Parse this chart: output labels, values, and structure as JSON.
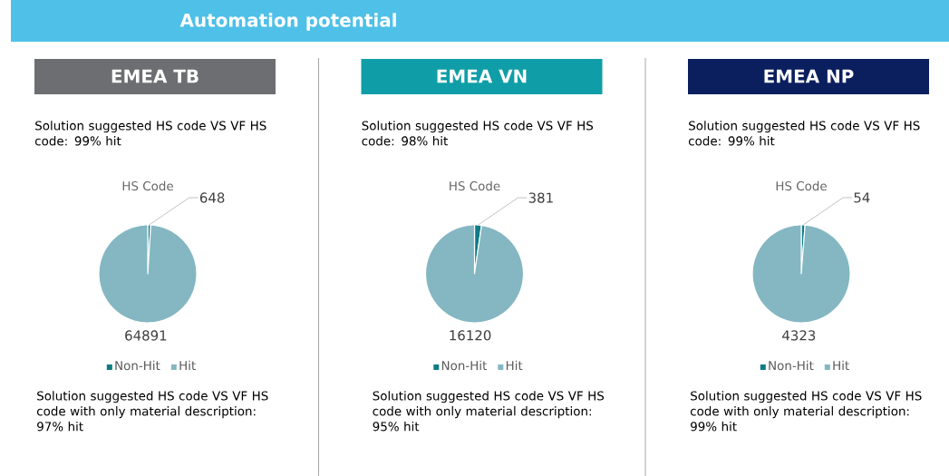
{
  "chart_data": [
    {
      "type": "other",
      "title": "Automation potential"
    },
    {
      "type": "pie",
      "title": "EMEA TB",
      "subtitle": "Solution suggested HS code VS VF HS code: 99% hit",
      "categories": [
        "Non-Hit",
        "Hit"
      ],
      "values": [
        648,
        64891
      ],
      "colors": [
        "#0e7c86",
        "#84b7c2"
      ],
      "data_labels": true,
      "legend": "bottom",
      "annotations": [
        "HS Code",
        "Solution suggested HS code VS VF HS code with only material description: 97% hit"
      ]
    },
    {
      "type": "pie",
      "title": "EMEA VN",
      "subtitle": "Solution suggested HS code VS VF HS code: 98% hit",
      "categories": [
        "Non-Hit",
        "Hit"
      ],
      "values": [
        381,
        16120
      ],
      "colors": [
        "#0e7c86",
        "#84b7c2"
      ],
      "data_labels": true,
      "legend": "bottom",
      "annotations": [
        "HS Code",
        "Solution suggested HS code VS VF HS code with only material description: 95% hit"
      ]
    },
    {
      "type": "pie",
      "title": "EMEA NP",
      "subtitle": "Solution suggested HS code VS VF HS code: 99% hit",
      "categories": [
        "Non-Hit",
        "Hit"
      ],
      "values": [
        54,
        4323
      ],
      "colors": [
        "#0e7c86",
        "#84b7c2"
      ],
      "data_labels": true,
      "legend": "bottom",
      "annotations": [
        "HS Code",
        "Solution suggested HS code VS VF HS code with only material description: 99% hit"
      ]
    }
  ]
}
